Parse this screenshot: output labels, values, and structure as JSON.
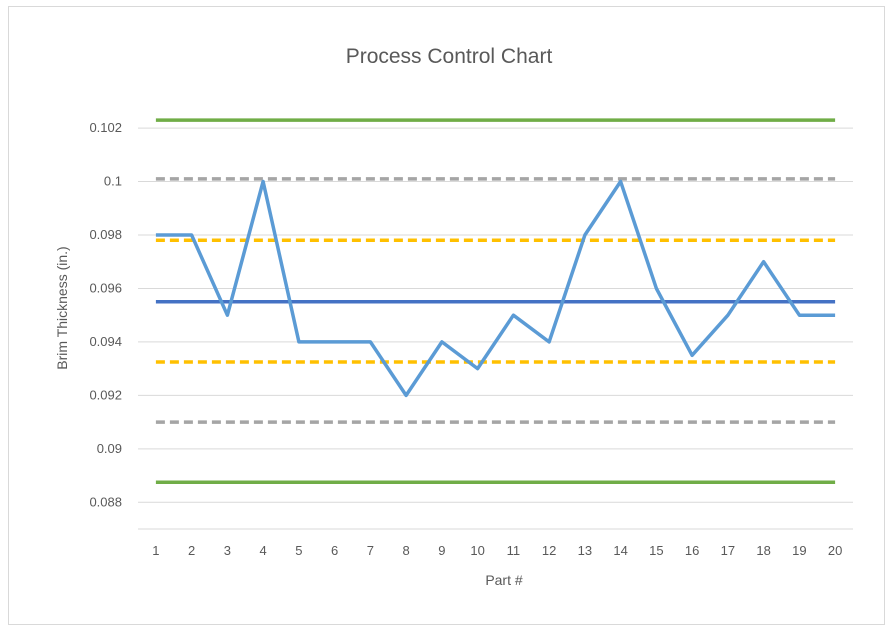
{
  "chart_data": {
    "type": "line",
    "title": "Process Control Chart",
    "xlabel": "Part #",
    "ylabel": "Brim Thickness (in.)",
    "categories": [
      "1",
      "2",
      "3",
      "4",
      "5",
      "6",
      "7",
      "8",
      "9",
      "10",
      "11",
      "12",
      "13",
      "14",
      "15",
      "16",
      "17",
      "18",
      "19",
      "20"
    ],
    "ylim": [
      0.087,
      0.1035
    ],
    "yticks": [
      "0.088",
      "0.09",
      "0.092",
      "0.094",
      "0.096",
      "0.098",
      "0.1",
      "0.102"
    ],
    "grid": true,
    "legend": "none",
    "series": [
      {
        "values": [
          0.098,
          0.098,
          0.095,
          0.1,
          0.094,
          0.094,
          0.094,
          0.092,
          0.094,
          0.093,
          0.095,
          0.094,
          0.098,
          0.1,
          0.096,
          0.0935,
          0.095,
          0.097,
          0.095,
          0.095
        ],
        "color": "#5b9bd5",
        "style": "solid"
      },
      {
        "values": [
          0.0955,
          0.0955,
          0.0955,
          0.0955,
          0.0955,
          0.0955,
          0.0955,
          0.0955,
          0.0955,
          0.0955,
          0.0955,
          0.0955,
          0.0955,
          0.0955,
          0.0955,
          0.0955,
          0.0955,
          0.0955,
          0.0955,
          0.0955
        ],
        "color": "#4472c4",
        "style": "solid"
      },
      {
        "values": [
          0.1023,
          0.1023,
          0.1023,
          0.1023,
          0.1023,
          0.1023,
          0.1023,
          0.1023,
          0.1023,
          0.1023,
          0.1023,
          0.1023,
          0.1023,
          0.1023,
          0.1023,
          0.1023,
          0.1023,
          0.1023,
          0.1023,
          0.1023
        ],
        "color": "#70ad47",
        "style": "solid"
      },
      {
        "values": [
          0.08875,
          0.08875,
          0.08875,
          0.08875,
          0.08875,
          0.08875,
          0.08875,
          0.08875,
          0.08875,
          0.08875,
          0.08875,
          0.08875,
          0.08875,
          0.08875,
          0.08875,
          0.08875,
          0.08875,
          0.08875,
          0.08875,
          0.08875
        ],
        "color": "#70ad47",
        "style": "solid"
      },
      {
        "values": [
          0.1001,
          0.1001,
          0.1001,
          0.1001,
          0.1001,
          0.1001,
          0.1001,
          0.1001,
          0.1001,
          0.1001,
          0.1001,
          0.1001,
          0.1001,
          0.1001,
          0.1001,
          0.1001,
          0.1001,
          0.1001,
          0.1001,
          0.1001
        ],
        "color": "#a5a5a5",
        "style": "dashed"
      },
      {
        "values": [
          0.091,
          0.091,
          0.091,
          0.091,
          0.091,
          0.091,
          0.091,
          0.091,
          0.091,
          0.091,
          0.091,
          0.091,
          0.091,
          0.091,
          0.091,
          0.091,
          0.091,
          0.091,
          0.091,
          0.091
        ],
        "color": "#a5a5a5",
        "style": "dashed"
      },
      {
        "values": [
          0.0978,
          0.0978,
          0.0978,
          0.0978,
          0.0978,
          0.0978,
          0.0978,
          0.0978,
          0.0978,
          0.0978,
          0.0978,
          0.0978,
          0.0978,
          0.0978,
          0.0978,
          0.0978,
          0.0978,
          0.0978,
          0.0978,
          0.0978
        ],
        "color": "#ffc000",
        "style": "dashed"
      },
      {
        "values": [
          0.09325,
          0.09325,
          0.09325,
          0.09325,
          0.09325,
          0.09325,
          0.09325,
          0.09325,
          0.09325,
          0.09325,
          0.09325,
          0.09325,
          0.09325,
          0.09325,
          0.09325,
          0.09325,
          0.09325,
          0.09325,
          0.09325,
          0.09325
        ],
        "color": "#ffc000",
        "style": "dashed"
      }
    ]
  }
}
